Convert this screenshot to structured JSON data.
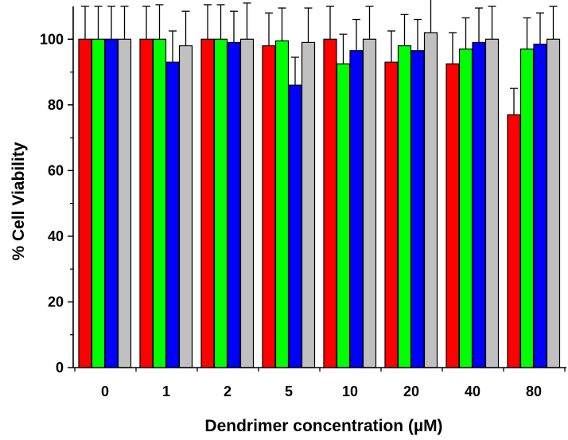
{
  "chart_data": {
    "type": "bar",
    "title": "",
    "xlabel": "Dendrimer concentration (µM)",
    "ylabel": "% Cell Viability",
    "ylim": [
      0,
      110
    ],
    "yticks": [
      0,
      20,
      40,
      60,
      80,
      100
    ],
    "categories": [
      "0",
      "1",
      "2",
      "5",
      "10",
      "20",
      "40",
      "80"
    ],
    "grid": false,
    "legend": "none",
    "error_bars": "upper",
    "series": [
      {
        "color": "#ff0000",
        "values": [
          100,
          100,
          100,
          98,
          100,
          93,
          92.5,
          77
        ],
        "errors": [
          10,
          10,
          10.5,
          10,
          10,
          9.5,
          9.5,
          8
        ]
      },
      {
        "color": "#00ff00",
        "values": [
          100,
          100,
          100,
          99.5,
          92.5,
          98,
          97,
          97
        ],
        "errors": [
          10,
          10.5,
          10.5,
          10,
          9,
          9.5,
          9.5,
          9.5
        ]
      },
      {
        "color": "#0000ff",
        "values": [
          100,
          93,
          99,
          86,
          96.5,
          96.5,
          99,
          98.5
        ],
        "errors": [
          10,
          9.5,
          9.5,
          8.5,
          9.5,
          9.5,
          10.5,
          9.5
        ]
      },
      {
        "color": "#c0c0c0",
        "values": [
          100,
          98,
          100,
          99,
          100,
          102,
          100,
          100
        ],
        "errors": [
          10,
          10.5,
          11,
          10.5,
          10,
          10.5,
          10,
          10
        ]
      }
    ]
  }
}
